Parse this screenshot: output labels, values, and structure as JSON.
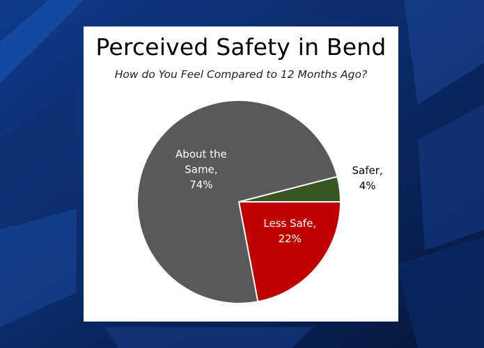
{
  "colors": {
    "about_the_same": "#595959",
    "less_safe": "#c00000",
    "safer": "#375623",
    "card_background": "#ffffff",
    "background": "#0a1f4d"
  },
  "chart_data": {
    "type": "pie",
    "title": "Perceived Safety in Bend",
    "subtitle": "How do You Feel Compared to 12 Months Ago?",
    "slices": [
      {
        "label": "Safer,",
        "value": 4,
        "value_label": "4%",
        "color": "#375623"
      },
      {
        "label": "Less Safe,",
        "value": 22,
        "value_label": "22%",
        "color": "#c00000"
      },
      {
        "label": "About the Same,",
        "label_lines": [
          "About the",
          "Same,"
        ],
        "value": 74,
        "value_label": "74%",
        "color": "#595959"
      }
    ]
  }
}
